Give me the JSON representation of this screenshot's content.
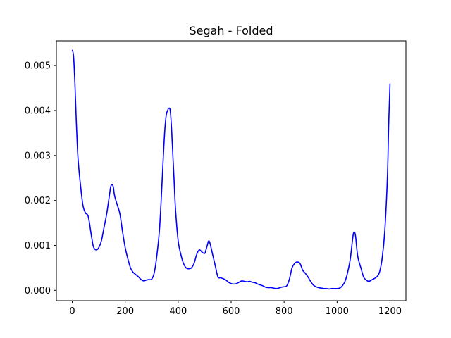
{
  "chart_data": {
    "type": "line",
    "title": "Segah - Folded",
    "xlabel": "",
    "ylabel": "",
    "xlim": [
      -60,
      1260
    ],
    "ylim": [
      -0.00023,
      0.00555
    ],
    "grid": false,
    "xticks": [
      0,
      200,
      400,
      600,
      800,
      1000,
      1200
    ],
    "xtick_labels": [
      "0",
      "200",
      "400",
      "600",
      "800",
      "1000",
      "1200"
    ],
    "yticks": [
      0.0,
      0.001,
      0.002,
      0.003,
      0.004,
      0.005
    ],
    "ytick_labels": [
      "0.000",
      "0.001",
      "0.002",
      "0.003",
      "0.004",
      "0.005"
    ],
    "series": [
      {
        "color": "#0000ff",
        "x": [
          0,
          5,
          10,
          15,
          20,
          25,
          30,
          40,
          50,
          55,
          60,
          65,
          70,
          75,
          80,
          90,
          100,
          110,
          120,
          130,
          140,
          145,
          150,
          155,
          160,
          170,
          180,
          190,
          200,
          210,
          220,
          230,
          240,
          250,
          260,
          270,
          280,
          290,
          300,
          310,
          320,
          330,
          340,
          345,
          350,
          355,
          360,
          365,
          370,
          375,
          380,
          385,
          390,
          400,
          410,
          420,
          430,
          440,
          450,
          460,
          470,
          480,
          490,
          500,
          505,
          510,
          515,
          520,
          530,
          540,
          550,
          560,
          570,
          580,
          590,
          600,
          610,
          620,
          630,
          640,
          650,
          660,
          670,
          680,
          690,
          700,
          710,
          720,
          730,
          740,
          750,
          760,
          770,
          780,
          790,
          800,
          810,
          820,
          830,
          840,
          850,
          860,
          870,
          880,
          890,
          900,
          910,
          920,
          930,
          940,
          950,
          960,
          970,
          980,
          990,
          1000,
          1010,
          1020,
          1030,
          1040,
          1050,
          1060,
          1065,
          1070,
          1075,
          1080,
          1090,
          1100,
          1110,
          1120,
          1130,
          1140,
          1150,
          1160,
          1170,
          1180,
          1190,
          1195,
          1200
        ],
        "y": [
          0.00535,
          0.0052,
          0.0046,
          0.0038,
          0.0031,
          0.0027,
          0.0024,
          0.0019,
          0.00172,
          0.0017,
          0.00165,
          0.0015,
          0.0013,
          0.00112,
          0.00097,
          0.0009,
          0.00095,
          0.0011,
          0.0014,
          0.0017,
          0.0021,
          0.0023,
          0.00235,
          0.0023,
          0.0021,
          0.0019,
          0.0017,
          0.0013,
          0.00095,
          0.0007,
          0.0005,
          0.0004,
          0.00035,
          0.0003,
          0.00024,
          0.00021,
          0.00023,
          0.00024,
          0.00025,
          0.0004,
          0.0008,
          0.0014,
          0.0025,
          0.0031,
          0.0036,
          0.0039,
          0.004,
          0.00405,
          0.004,
          0.0036,
          0.003,
          0.0024,
          0.0018,
          0.0011,
          0.0008,
          0.0006,
          0.0005,
          0.00048,
          0.0005,
          0.0006,
          0.0008,
          0.0009,
          0.00085,
          0.00082,
          0.0009,
          0.001,
          0.0011,
          0.00105,
          0.0008,
          0.00055,
          0.0003,
          0.00028,
          0.00026,
          0.00023,
          0.00018,
          0.00015,
          0.00014,
          0.00015,
          0.00018,
          0.00021,
          0.0002,
          0.00019,
          0.0002,
          0.00018,
          0.00017,
          0.00014,
          0.00012,
          0.0001,
          7e-05,
          6e-05,
          6e-05,
          5e-05,
          4e-05,
          5e-05,
          7e-05,
          8e-05,
          0.0001,
          0.00025,
          0.0005,
          0.0006,
          0.00063,
          0.0006,
          0.00045,
          0.00038,
          0.0003,
          0.0002,
          0.00012,
          8e-05,
          6e-05,
          5e-05,
          4e-05,
          4e-05,
          3e-05,
          4e-05,
          4e-05,
          4e-05,
          5e-05,
          0.0001,
          0.0002,
          0.0004,
          0.0007,
          0.0012,
          0.0013,
          0.0012,
          0.0009,
          0.0007,
          0.0005,
          0.0003,
          0.00023,
          0.0002,
          0.00023,
          0.00026,
          0.0003,
          0.0004,
          0.0007,
          0.0013,
          0.0025,
          0.0037,
          0.0046
        ]
      }
    ]
  }
}
